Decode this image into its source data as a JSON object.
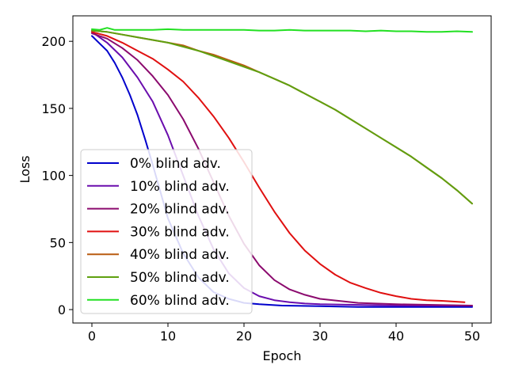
{
  "chart_data": {
    "type": "line",
    "xlabel": "Epoch",
    "ylabel": "Loss",
    "xlim": [
      -2.5,
      52.5
    ],
    "ylim": [
      -10,
      219
    ],
    "xticks": [
      0,
      10,
      20,
      30,
      40,
      50
    ],
    "yticks": [
      0,
      50,
      100,
      150,
      200
    ],
    "grid": false,
    "legend_position": "lower-left",
    "series": [
      {
        "name": "0% blind adv.",
        "color": "#0000cc",
        "x": [
          0,
          2,
          3,
          4,
          5,
          6,
          7,
          8,
          9,
          10,
          12,
          14,
          16,
          18,
          20,
          22,
          25,
          30,
          35,
          40,
          45,
          50
        ],
        "y": [
          204,
          193,
          184,
          173,
          160,
          145,
          127,
          108,
          88,
          68,
          42,
          24,
          13,
          8,
          5,
          4,
          3,
          2.5,
          2,
          2,
          2,
          2
        ]
      },
      {
        "name": "10% blind adv.",
        "color": "#6a0dad",
        "x": [
          0,
          2,
          4,
          6,
          8,
          10,
          12,
          14,
          16,
          18,
          20,
          22,
          24,
          26,
          28,
          30,
          35,
          40,
          45,
          50
        ],
        "y": [
          207,
          199,
          188,
          173,
          155,
          130,
          100,
          70,
          45,
          27,
          16,
          10,
          7,
          5.5,
          4.5,
          4,
          3.5,
          3,
          3,
          3
        ]
      },
      {
        "name": "20% blind adv.",
        "color": "#8b0a6e",
        "x": [
          0,
          2,
          4,
          6,
          8,
          10,
          12,
          14,
          16,
          18,
          20,
          22,
          24,
          26,
          28,
          30,
          35,
          40,
          45,
          50
        ],
        "y": [
          206,
          202,
          195,
          186,
          174,
          160,
          142,
          120,
          95,
          70,
          49,
          33,
          22,
          15,
          11,
          8,
          5,
          4,
          3.5,
          3
        ]
      },
      {
        "name": "30% blind adv.",
        "color": "#e01010",
        "x": [
          0,
          2,
          4,
          6,
          8,
          10,
          12,
          14,
          16,
          18,
          20,
          22,
          24,
          26,
          28,
          30,
          32,
          34,
          36,
          38,
          40,
          42,
          44,
          46,
          49
        ],
        "y": [
          207,
          204,
          199,
          193,
          187,
          179,
          170,
          158,
          144,
          128,
          110,
          91,
          73,
          57,
          44,
          34,
          26,
          20,
          16,
          12.5,
          10,
          8,
          7,
          6.5,
          5.5
        ]
      },
      {
        "name": "40% blind adv.",
        "color": "#b85c10",
        "x": [
          0,
          2,
          4,
          6,
          8,
          10,
          12,
          14,
          16,
          18,
          20,
          22,
          24,
          26,
          28,
          30,
          32,
          34,
          36,
          38,
          40,
          42,
          44,
          46,
          48,
          50
        ],
        "y": [
          208,
          207,
          205,
          203,
          201,
          199,
          197,
          193,
          190,
          186,
          182,
          177,
          172,
          167,
          161,
          155,
          149,
          142,
          135,
          128,
          121,
          114,
          106,
          98,
          89,
          79
        ]
      },
      {
        "name": "50% blind adv.",
        "color": "#5fa010",
        "x": [
          0,
          2,
          4,
          6,
          8,
          10,
          12,
          14,
          16,
          18,
          20,
          22,
          24,
          26,
          28,
          30,
          32,
          34,
          36,
          38,
          40,
          42,
          44,
          46,
          48,
          50
        ],
        "y": [
          208,
          207,
          205,
          203,
          201,
          199,
          196,
          193,
          189,
          185,
          181,
          177,
          172,
          167,
          161,
          155,
          149,
          142,
          135,
          128,
          121,
          114,
          106,
          98,
          89,
          79
        ]
      },
      {
        "name": "60% blind adv.",
        "color": "#22e022",
        "x": [
          0,
          1,
          2,
          3,
          4,
          6,
          8,
          10,
          12,
          14,
          16,
          18,
          20,
          22,
          24,
          26,
          28,
          30,
          32,
          34,
          36,
          38,
          40,
          42,
          44,
          46,
          48,
          50
        ],
        "y": [
          209,
          208.5,
          210,
          208.5,
          208.5,
          208.5,
          208.5,
          209,
          208.5,
          208.5,
          208.5,
          208.5,
          208.5,
          208,
          208,
          208.5,
          208,
          208,
          208,
          208,
          207.5,
          208,
          207.5,
          207.5,
          207,
          207,
          207.5,
          207
        ]
      }
    ]
  }
}
